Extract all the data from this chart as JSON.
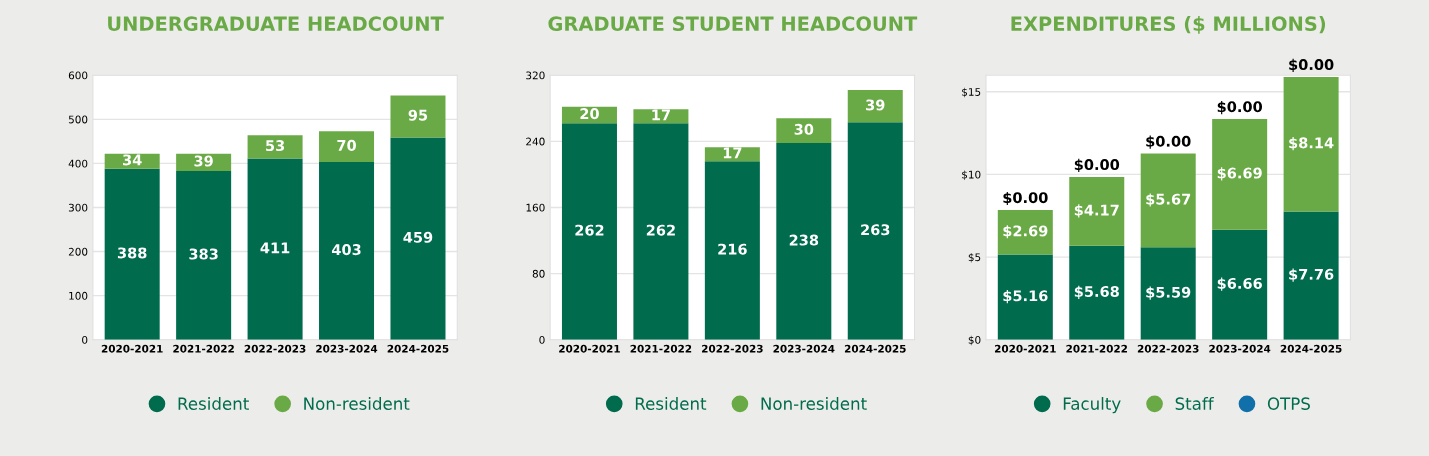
{
  "chart_data": [
    {
      "type": "bar",
      "title": "UNDERGRADUATE HEADCOUNT",
      "stacked": true,
      "categories": [
        "2020-2021",
        "2021-2022",
        "2022-2023",
        "2023-2024",
        "2024-2025"
      ],
      "series": [
        {
          "name": "Resident",
          "color": "#006b4d",
          "values": [
            388,
            383,
            411,
            403,
            459
          ]
        },
        {
          "name": "Non-resident",
          "color": "#6aaa46",
          "values": [
            34,
            39,
            53,
            70,
            95
          ]
        }
      ],
      "ylim": [
        0,
        600
      ],
      "yticks": [
        0,
        100,
        200,
        300,
        400,
        500,
        600
      ],
      "grid": "y",
      "legend": "bottom",
      "data_labels": true
    },
    {
      "type": "bar",
      "title": "GRADUATE STUDENT HEADCOUNT",
      "stacked": true,
      "categories": [
        "2020-2021",
        "2021-2022",
        "2022-2023",
        "2023-2024",
        "2024-2025"
      ],
      "series": [
        {
          "name": "Resident",
          "color": "#006b4d",
          "values": [
            262,
            262,
            216,
            238,
            263
          ]
        },
        {
          "name": "Non-resident",
          "color": "#6aaa46",
          "values": [
            20,
            17,
            17,
            30,
            39
          ]
        }
      ],
      "ylim": [
        0,
        320
      ],
      "yticks": [
        0,
        80,
        160,
        240,
        320
      ],
      "grid": "y",
      "legend": "bottom",
      "data_labels": true
    },
    {
      "type": "bar",
      "title": "EXPENDITURES ($ MILLIONS)",
      "stacked": true,
      "categories": [
        "2020-2021",
        "2021-2022",
        "2022-2023",
        "2023-2024",
        "2024-2025"
      ],
      "series": [
        {
          "name": "Faculty",
          "color": "#006b4d",
          "values": [
            5.16,
            5.68,
            5.59,
            6.66,
            7.76
          ],
          "value_labels": [
            "$5.16",
            "$5.68",
            "$5.59",
            "$6.66",
            "$7.76"
          ]
        },
        {
          "name": "Staff",
          "color": "#6aaa46",
          "values": [
            2.69,
            4.17,
            5.67,
            6.69,
            8.14
          ],
          "value_labels": [
            "$2.69",
            "$4.17",
            "$5.67",
            "$6.69",
            "$8.14"
          ]
        },
        {
          "name": "OTPS",
          "color": "#1170aa",
          "values": [
            0,
            0,
            0,
            0,
            0
          ],
          "value_labels": [
            "$0.00",
            "$0.00",
            "$0.00",
            "$0.00",
            "$0.00"
          ]
        }
      ],
      "ylim": [
        0,
        16
      ],
      "yticks": [
        {
          "value": 0,
          "label": "$0"
        },
        {
          "value": 5,
          "label": "$5"
        },
        {
          "value": 10,
          "label": "$10"
        },
        {
          "value": 15,
          "label": "$15"
        }
      ],
      "grid": "y",
      "legend": "bottom"
    }
  ]
}
